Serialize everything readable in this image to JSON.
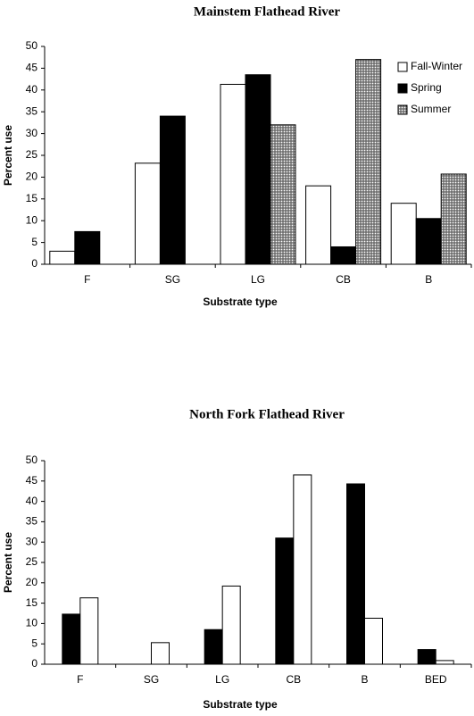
{
  "chart_data": [
    {
      "type": "bar",
      "title": "Mainstem Flathead River",
      "x_label": "Substrate type",
      "y_label": "Percent use",
      "categories": [
        "F",
        "SG",
        "LG",
        "CB",
        "B"
      ],
      "series": [
        {
          "name": "Fall-Winter",
          "color": "#ffffff",
          "values": [
            3,
            23.2,
            41.3,
            18,
            14
          ]
        },
        {
          "name": "Spring",
          "color": "#000000",
          "values": [
            7.5,
            34,
            43.5,
            4,
            10.5
          ]
        },
        {
          "name": "Summer",
          "color": "#9a9a9a",
          "pattern": true,
          "values": [
            0,
            0,
            32,
            47,
            20.7
          ]
        }
      ],
      "ylim": [
        0,
        50
      ],
      "yticks": [
        0,
        5,
        10,
        15,
        20,
        25,
        30,
        35,
        40,
        45,
        50
      ],
      "legend": "top-right"
    },
    {
      "type": "bar",
      "title": "North Fork Flathead River",
      "x_label": "Substrate type",
      "y_label": "Percent use",
      "categories": [
        "F",
        "SG",
        "LG",
        "CB",
        "B",
        "BED"
      ],
      "series": [
        {
          "color": "#000000",
          "values": [
            12.3,
            0,
            8.5,
            31,
            44.3,
            3.6
          ]
        },
        {
          "color": "#ffffff",
          "values": [
            16.3,
            5.3,
            19.2,
            46.5,
            11.3,
            0.9
          ]
        }
      ],
      "ylim": [
        0,
        50
      ],
      "yticks": [
        0,
        5,
        10,
        15,
        20,
        25,
        30,
        35,
        40,
        45,
        50
      ]
    }
  ]
}
